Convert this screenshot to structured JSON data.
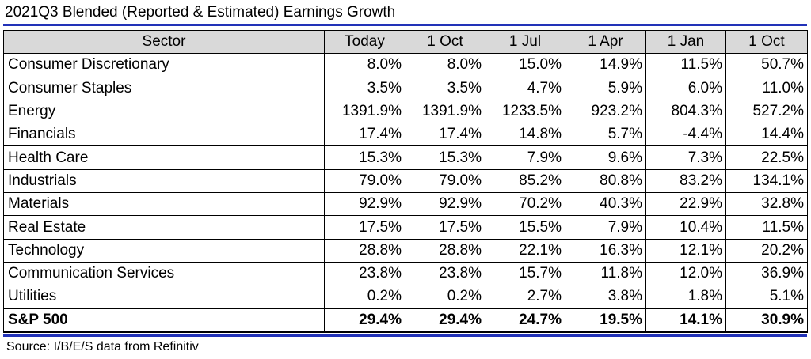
{
  "title": "2021Q3 Blended (Reported & Estimated) Earnings Growth",
  "source": "Source: I/B/E/S data from Refinitiv",
  "colors": {
    "rule": "#2232b8",
    "header_bg": "#d9d9d9"
  },
  "chart_data": {
    "type": "table",
    "title": "2021Q3 Blended (Reported & Estimated) Earnings Growth",
    "columns": [
      "Sector",
      "Today",
      "1 Oct",
      "1 Jul",
      "1 Apr",
      "1 Jan",
      "1 Oct"
    ],
    "rows": [
      {
        "sector": "Consumer Discretionary",
        "values": [
          "8.0%",
          "8.0%",
          "15.0%",
          "14.9%",
          "11.5%",
          "50.7%"
        ]
      },
      {
        "sector": "Consumer Staples",
        "values": [
          "3.5%",
          "3.5%",
          "4.7%",
          "5.9%",
          "6.0%",
          "11.0%"
        ]
      },
      {
        "sector": "Energy",
        "values": [
          "1391.9%",
          "1391.9%",
          "1233.5%",
          "923.2%",
          "804.3%",
          "527.2%"
        ]
      },
      {
        "sector": "Financials",
        "values": [
          "17.4%",
          "17.4%",
          "14.8%",
          "5.7%",
          "-4.4%",
          "14.4%"
        ]
      },
      {
        "sector": "Health Care",
        "values": [
          "15.3%",
          "15.3%",
          "7.9%",
          "9.6%",
          "7.3%",
          "22.5%"
        ]
      },
      {
        "sector": "Industrials",
        "values": [
          "79.0%",
          "79.0%",
          "85.2%",
          "80.8%",
          "83.2%",
          "134.1%"
        ]
      },
      {
        "sector": "Materials",
        "values": [
          "92.9%",
          "92.9%",
          "70.2%",
          "40.3%",
          "22.9%",
          "32.8%"
        ]
      },
      {
        "sector": "Real Estate",
        "values": [
          "17.5%",
          "17.5%",
          "15.5%",
          "7.9%",
          "10.4%",
          "11.5%"
        ]
      },
      {
        "sector": "Technology",
        "values": [
          "28.8%",
          "28.8%",
          "22.1%",
          "16.3%",
          "12.1%",
          "20.2%"
        ]
      },
      {
        "sector": "Communication Services",
        "values": [
          "23.8%",
          "23.8%",
          "15.7%",
          "11.8%",
          "12.0%",
          "36.9%"
        ]
      },
      {
        "sector": "Utilities",
        "values": [
          "0.2%",
          "0.2%",
          "2.7%",
          "3.8%",
          "1.8%",
          "5.1%"
        ]
      }
    ],
    "total": {
      "sector": "S&P 500",
      "values": [
        "29.4%",
        "29.4%",
        "24.7%",
        "19.5%",
        "14.1%",
        "30.9%"
      ]
    }
  }
}
